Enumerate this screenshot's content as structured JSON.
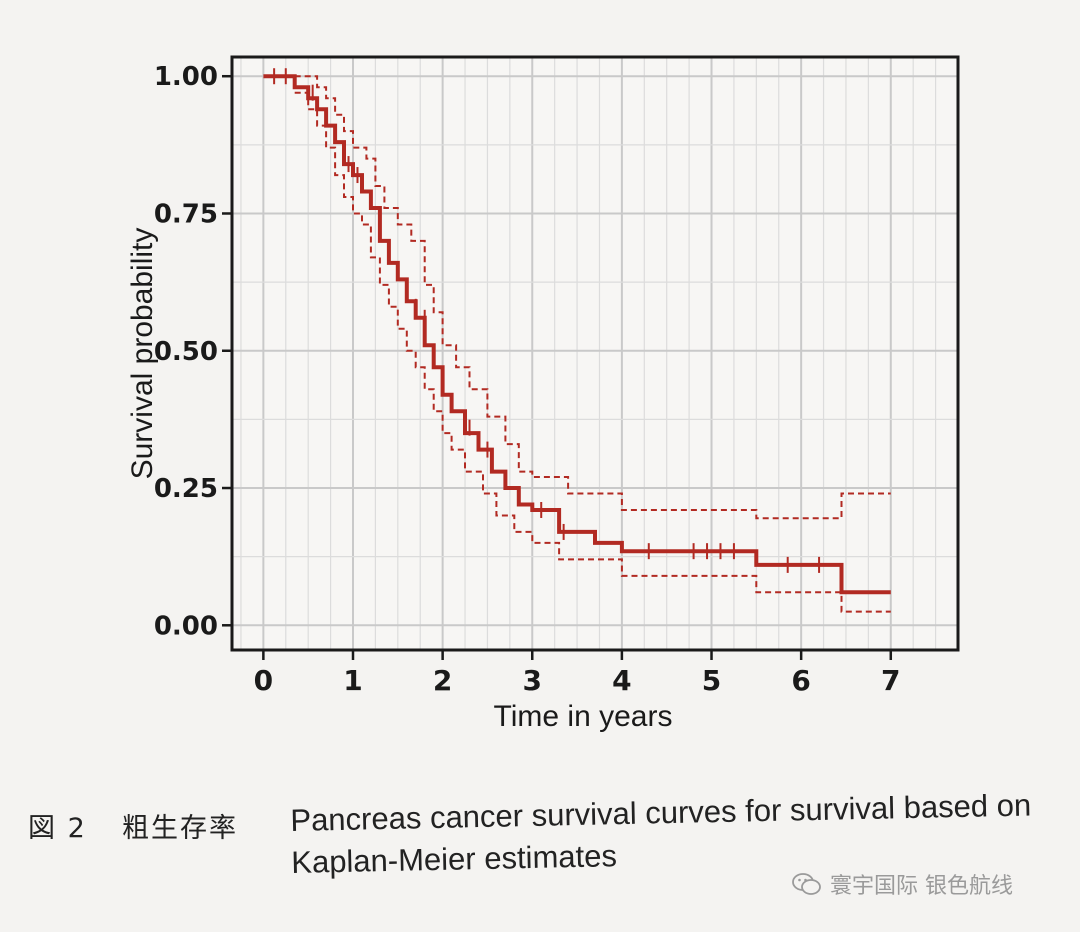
{
  "chart_data": {
    "type": "line",
    "ylabel": "Survival probability",
    "xlabel": "Time in years",
    "xlim": [
      -0.35,
      7.75
    ],
    "ylim": [
      -0.045,
      1.035
    ],
    "x_ticks": [
      "0",
      "1",
      "2",
      "3",
      "4",
      "5",
      "6",
      "7"
    ],
    "y_ticks": [
      "0.00",
      "0.25",
      "0.50",
      "0.75",
      "1.00"
    ],
    "grid": true,
    "series": [
      {
        "role": "estimate",
        "style": "solid",
        "color": "#b22a22",
        "points": [
          [
            0,
            1.0
          ],
          [
            0.35,
            1.0
          ],
          [
            0.35,
            0.98
          ],
          [
            0.5,
            0.98
          ],
          [
            0.5,
            0.96
          ],
          [
            0.6,
            0.96
          ],
          [
            0.6,
            0.94
          ],
          [
            0.7,
            0.94
          ],
          [
            0.7,
            0.91
          ],
          [
            0.8,
            0.91
          ],
          [
            0.8,
            0.88
          ],
          [
            0.9,
            0.88
          ],
          [
            0.9,
            0.84
          ],
          [
            1.0,
            0.84
          ],
          [
            1.0,
            0.82
          ],
          [
            1.1,
            0.82
          ],
          [
            1.1,
            0.79
          ],
          [
            1.2,
            0.79
          ],
          [
            1.2,
            0.76
          ],
          [
            1.3,
            0.76
          ],
          [
            1.3,
            0.7
          ],
          [
            1.4,
            0.7
          ],
          [
            1.4,
            0.66
          ],
          [
            1.5,
            0.66
          ],
          [
            1.5,
            0.63
          ],
          [
            1.6,
            0.63
          ],
          [
            1.6,
            0.59
          ],
          [
            1.7,
            0.59
          ],
          [
            1.7,
            0.56
          ],
          [
            1.8,
            0.56
          ],
          [
            1.8,
            0.51
          ],
          [
            1.9,
            0.51
          ],
          [
            1.9,
            0.47
          ],
          [
            2.0,
            0.47
          ],
          [
            2.0,
            0.42
          ],
          [
            2.1,
            0.42
          ],
          [
            2.1,
            0.39
          ],
          [
            2.25,
            0.39
          ],
          [
            2.25,
            0.35
          ],
          [
            2.4,
            0.35
          ],
          [
            2.4,
            0.32
          ],
          [
            2.55,
            0.32
          ],
          [
            2.55,
            0.28
          ],
          [
            2.7,
            0.28
          ],
          [
            2.7,
            0.25
          ],
          [
            2.85,
            0.25
          ],
          [
            2.85,
            0.22
          ],
          [
            3.0,
            0.22
          ],
          [
            3.0,
            0.21
          ],
          [
            3.3,
            0.21
          ],
          [
            3.3,
            0.17
          ],
          [
            3.7,
            0.17
          ],
          [
            3.7,
            0.15
          ],
          [
            4.0,
            0.15
          ],
          [
            4.0,
            0.135
          ],
          [
            5.5,
            0.135
          ],
          [
            5.5,
            0.11
          ],
          [
            6.45,
            0.11
          ],
          [
            6.45,
            0.06
          ],
          [
            7.0,
            0.06
          ]
        ]
      },
      {
        "role": "upper-95-ci",
        "style": "dashed",
        "color": "#b22a22",
        "points": [
          [
            0.35,
            1.0
          ],
          [
            0.6,
            1.0
          ],
          [
            0.6,
            0.98
          ],
          [
            0.7,
            0.98
          ],
          [
            0.7,
            0.96
          ],
          [
            0.8,
            0.96
          ],
          [
            0.8,
            0.93
          ],
          [
            0.9,
            0.93
          ],
          [
            0.9,
            0.9
          ],
          [
            1.0,
            0.9
          ],
          [
            1.0,
            0.87
          ],
          [
            1.15,
            0.87
          ],
          [
            1.15,
            0.85
          ],
          [
            1.25,
            0.85
          ],
          [
            1.25,
            0.8
          ],
          [
            1.35,
            0.8
          ],
          [
            1.35,
            0.76
          ],
          [
            1.5,
            0.76
          ],
          [
            1.5,
            0.73
          ],
          [
            1.65,
            0.73
          ],
          [
            1.65,
            0.7
          ],
          [
            1.8,
            0.7
          ],
          [
            1.8,
            0.62
          ],
          [
            1.9,
            0.62
          ],
          [
            1.9,
            0.57
          ],
          [
            2.0,
            0.57
          ],
          [
            2.0,
            0.51
          ],
          [
            2.15,
            0.51
          ],
          [
            2.15,
            0.47
          ],
          [
            2.3,
            0.47
          ],
          [
            2.3,
            0.43
          ],
          [
            2.5,
            0.43
          ],
          [
            2.5,
            0.38
          ],
          [
            2.7,
            0.38
          ],
          [
            2.7,
            0.33
          ],
          [
            2.85,
            0.33
          ],
          [
            2.85,
            0.28
          ],
          [
            3.0,
            0.28
          ],
          [
            3.0,
            0.27
          ],
          [
            3.4,
            0.27
          ],
          [
            3.4,
            0.24
          ],
          [
            4.0,
            0.24
          ],
          [
            4.0,
            0.21
          ],
          [
            5.5,
            0.21
          ],
          [
            5.5,
            0.195
          ],
          [
            6.45,
            0.195
          ],
          [
            6.45,
            0.24
          ],
          [
            7.0,
            0.24
          ]
        ]
      },
      {
        "role": "lower-95-ci",
        "style": "dashed",
        "color": "#b22a22",
        "points": [
          [
            0.35,
            0.97
          ],
          [
            0.5,
            0.97
          ],
          [
            0.5,
            0.94
          ],
          [
            0.6,
            0.94
          ],
          [
            0.6,
            0.91
          ],
          [
            0.7,
            0.91
          ],
          [
            0.7,
            0.87
          ],
          [
            0.8,
            0.87
          ],
          [
            0.8,
            0.82
          ],
          [
            0.9,
            0.82
          ],
          [
            0.9,
            0.78
          ],
          [
            1.0,
            0.78
          ],
          [
            1.0,
            0.75
          ],
          [
            1.1,
            0.75
          ],
          [
            1.1,
            0.73
          ],
          [
            1.2,
            0.73
          ],
          [
            1.2,
            0.67
          ],
          [
            1.3,
            0.67
          ],
          [
            1.3,
            0.62
          ],
          [
            1.4,
            0.62
          ],
          [
            1.4,
            0.58
          ],
          [
            1.5,
            0.58
          ],
          [
            1.5,
            0.54
          ],
          [
            1.6,
            0.54
          ],
          [
            1.6,
            0.5
          ],
          [
            1.7,
            0.5
          ],
          [
            1.7,
            0.47
          ],
          [
            1.8,
            0.47
          ],
          [
            1.8,
            0.43
          ],
          [
            1.9,
            0.43
          ],
          [
            1.9,
            0.39
          ],
          [
            2.0,
            0.39
          ],
          [
            2.0,
            0.35
          ],
          [
            2.1,
            0.35
          ],
          [
            2.1,
            0.32
          ],
          [
            2.25,
            0.32
          ],
          [
            2.25,
            0.28
          ],
          [
            2.45,
            0.28
          ],
          [
            2.45,
            0.24
          ],
          [
            2.6,
            0.24
          ],
          [
            2.6,
            0.2
          ],
          [
            2.8,
            0.2
          ],
          [
            2.8,
            0.17
          ],
          [
            3.0,
            0.17
          ],
          [
            3.0,
            0.15
          ],
          [
            3.3,
            0.15
          ],
          [
            3.3,
            0.12
          ],
          [
            4.0,
            0.12
          ],
          [
            4.0,
            0.09
          ],
          [
            5.5,
            0.09
          ],
          [
            5.5,
            0.06
          ],
          [
            6.45,
            0.06
          ],
          [
            6.45,
            0.025
          ],
          [
            7.0,
            0.025
          ]
        ]
      }
    ],
    "censor_marks": [
      [
        0.12,
        1.0
      ],
      [
        0.25,
        1.0
      ],
      [
        0.55,
        0.97
      ],
      [
        0.95,
        0.84
      ],
      [
        1.05,
        0.82
      ],
      [
        1.7,
        0.58
      ],
      [
        1.8,
        0.56
      ],
      [
        2.3,
        0.36
      ],
      [
        2.5,
        0.32
      ],
      [
        3.1,
        0.21
      ],
      [
        3.35,
        0.17
      ],
      [
        4.3,
        0.135
      ],
      [
        4.8,
        0.135
      ],
      [
        4.95,
        0.135
      ],
      [
        5.1,
        0.135
      ],
      [
        5.25,
        0.135
      ],
      [
        5.85,
        0.11
      ],
      [
        6.2,
        0.11
      ]
    ]
  },
  "caption": {
    "label": "図 2",
    "chinese": "粗生存率",
    "english": "Pancreas cancer survival curves for survival based on Kaplan-Meier estimates"
  },
  "watermark": {
    "text": "寰宇国际 银色航线",
    "icon": "wechat-icon"
  }
}
